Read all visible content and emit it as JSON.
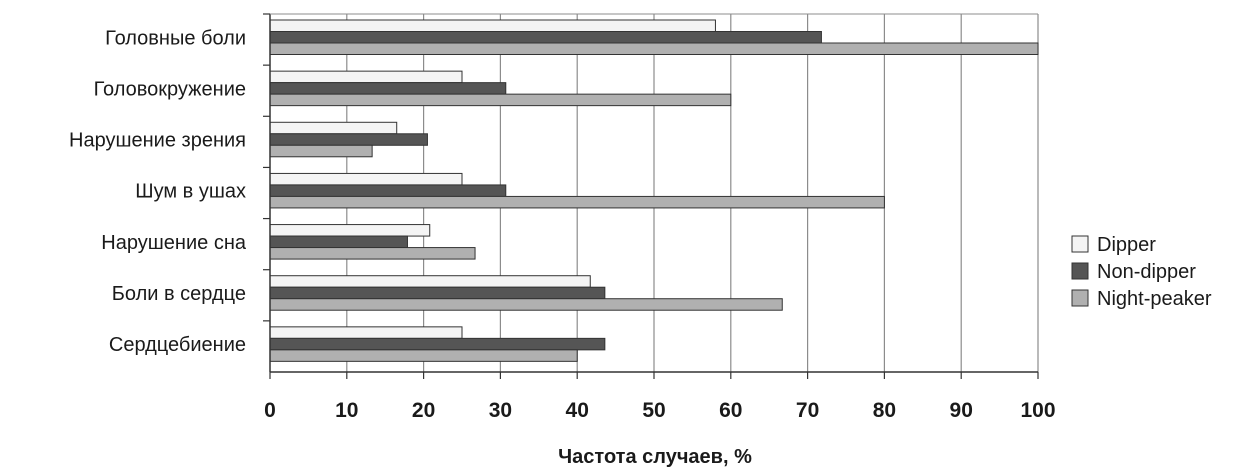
{
  "chart_data": {
    "type": "bar",
    "orientation": "horizontal",
    "categories": [
      "Головные боли",
      "Головокружение",
      "Нарушение зрения",
      "Шум в ушах",
      "Нарушение сна",
      "Боли в сердце",
      "Сердцебиение"
    ],
    "series": [
      {
        "name": "Dipper",
        "color": "#f4f4f4",
        "values": [
          58,
          25,
          16.5,
          25,
          20.8,
          41.7,
          25
        ]
      },
      {
        "name": "Non-dipper",
        "color": "#555555",
        "values": [
          71.8,
          30.7,
          20.5,
          30.7,
          17.9,
          43.6,
          43.6
        ]
      },
      {
        "name": "Night-peaker",
        "color": "#b0b0b0",
        "values": [
          100,
          60,
          13.3,
          80,
          26.7,
          66.7,
          40
        ]
      }
    ],
    "xlabel": "Частота случаев, %",
    "ylabel": "",
    "xlim": [
      0,
      100
    ],
    "xticks": [
      "0",
      "10",
      "20",
      "30",
      "40",
      "50",
      "60",
      "70",
      "80",
      "90",
      "100"
    ],
    "grid": "vertical",
    "legend_position": "right"
  }
}
